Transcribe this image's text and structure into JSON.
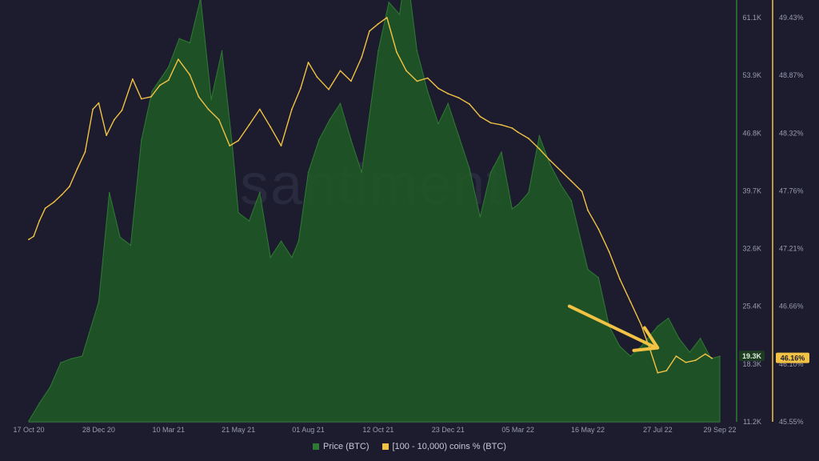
{
  "watermark": "santiment",
  "colors": {
    "background": "#1c1c2e",
    "price": "#1f5c24",
    "price_line": "#2f7a33",
    "holders": "#f2c244",
    "axis_text": "#9a9aae"
  },
  "legend": {
    "price_label": "Price (BTC)",
    "holders_label": "[100 - 10,000) coins % (BTC)"
  },
  "current_values": {
    "price": "19.3K",
    "holders": "46.16%"
  },
  "chart_data": {
    "type": "area",
    "x_tick_labels": [
      "17 Oct 20",
      "28 Dec 20",
      "10 Mar 21",
      "21 May 21",
      "01 Aug 21",
      "12 Oct 21",
      "23 Dec 21",
      "05 Mar 22",
      "16 May 22",
      "27 Jul 22",
      "29 Sep 22"
    ],
    "y_left_ticks": [
      "61.1K",
      "53.9K",
      "46.8K",
      "39.7K",
      "32.6K",
      "25.4K",
      "18.3K",
      "11.2K"
    ],
    "y_left_range": [
      11200,
      61100
    ],
    "y_right_ticks": [
      "49.43%",
      "48.87%",
      "48.32%",
      "47.76%",
      "47.21%",
      "46.66%",
      "46.10%",
      "45.55%"
    ],
    "y_right_range": [
      45.55,
      49.43
    ],
    "series": [
      {
        "name": "Price (BTC)",
        "axis": "left",
        "style": "area",
        "x": [
          "17 Oct 20",
          "28 Oct 20",
          "08 Nov 20",
          "19 Nov 20",
          "30 Nov 20",
          "11 Dec 20",
          "28 Dec 20",
          "08 Jan 21",
          "19 Jan 21",
          "30 Jan 21",
          "10 Feb 21",
          "21 Feb 21",
          "10 Mar 21",
          "21 Mar 21",
          "01 Apr 21",
          "12 Apr 21",
          "23 Apr 21",
          "04 May 21",
          "15 May 21",
          "21 May 21",
          "01 Jun 21",
          "12 Jun 21",
          "23 Jun 21",
          "04 Jul 21",
          "15 Jul 21",
          "22 Jul 21",
          "01 Aug 21",
          "12 Aug 21",
          "23 Aug 21",
          "03 Sep 21",
          "14 Sep 21",
          "25 Sep 21",
          "12 Oct 21",
          "23 Oct 21",
          "03 Nov 21",
          "10 Nov 21",
          "21 Nov 21",
          "02 Dec 21",
          "13 Dec 21",
          "23 Dec 21",
          "03 Jan 22",
          "14 Jan 22",
          "25 Jan 22",
          "05 Feb 22",
          "16 Feb 22",
          "27 Feb 22",
          "05 Mar 22",
          "16 Mar 22",
          "27 Mar 22",
          "07 Apr 22",
          "18 Apr 22",
          "29 Apr 22",
          "16 May 22",
          "27 May 22",
          "07 Jun 22",
          "18 Jun 22",
          "29 Jun 22",
          "10 Jul 22",
          "27 Jul 22",
          "07 Aug 22",
          "18 Aug 22",
          "29 Aug 22",
          "09 Sep 22",
          "20 Sep 22",
          "29 Sep 22"
        ],
        "values": [
          11300,
          13500,
          15500,
          18500,
          19000,
          19300,
          26000,
          39500,
          34000,
          33000,
          46000,
          52000,
          55000,
          58500,
          58000,
          63500,
          51000,
          57000,
          45000,
          37000,
          36000,
          39500,
          31500,
          33500,
          31500,
          33500,
          42000,
          46000,
          48500,
          50500,
          46000,
          42000,
          57000,
          63000,
          61500,
          67500,
          57000,
          52000,
          48000,
          50500,
          46500,
          42500,
          36500,
          42000,
          44500,
          37500,
          38000,
          39500,
          46500,
          43000,
          40500,
          38500,
          30000,
          29000,
          23000,
          20500,
          19300,
          20500,
          23000,
          24000,
          21500,
          19800,
          21500,
          19000,
          19300
        ]
      },
      {
        "name": "[100 - 10,000) coins % (BTC)",
        "axis": "right",
        "style": "line",
        "x": [
          "17 Oct 20",
          "22 Oct 20",
          "28 Oct 20",
          "03 Nov 20",
          "12 Nov 20",
          "20 Nov 20",
          "28 Nov 20",
          "06 Dec 20",
          "14 Dec 20",
          "22 Dec 20",
          "28 Dec 20",
          "05 Jan 21",
          "13 Jan 21",
          "21 Jan 21",
          "01 Feb 21",
          "10 Feb 21",
          "20 Feb 21",
          "01 Mar 21",
          "10 Mar 21",
          "20 Mar 21",
          "01 Apr 21",
          "10 Apr 21",
          "20 Apr 21",
          "01 May 21",
          "12 May 21",
          "21 May 21",
          "01 Jun 21",
          "12 Jun 21",
          "23 Jun 21",
          "04 Jul 21",
          "15 Jul 21",
          "24 Jul 21",
          "01 Aug 21",
          "10 Aug 21",
          "22 Aug 21",
          "03 Sep 21",
          "14 Sep 21",
          "25 Sep 21",
          "03 Oct 21",
          "12 Oct 21",
          "21 Oct 21",
          "31 Oct 21",
          "10 Nov 21",
          "21 Nov 21",
          "02 Dec 21",
          "13 Dec 21",
          "23 Dec 21",
          "03 Jan 22",
          "14 Jan 22",
          "25 Jan 22",
          "05 Feb 22",
          "16 Feb 22",
          "27 Feb 22",
          "05 Mar 22",
          "16 Mar 22",
          "27 Mar 22",
          "07 Apr 22",
          "18 Apr 22",
          "29 Apr 22",
          "10 May 22",
          "16 May 22",
          "27 May 22",
          "07 Jun 22",
          "18 Jun 22",
          "29 Jun 22",
          "10 Jul 22",
          "20 Jul 22",
          "27 Jul 22",
          "05 Aug 22",
          "15 Aug 22",
          "25 Aug 22",
          "04 Sep 22",
          "14 Sep 22",
          "21 Sep 22"
        ],
        "values": [
          47.3,
          47.33,
          47.48,
          47.6,
          47.66,
          47.73,
          47.81,
          47.98,
          48.14,
          48.55,
          48.61,
          48.3,
          48.45,
          48.54,
          48.84,
          48.65,
          48.67,
          48.78,
          48.83,
          49.03,
          48.88,
          48.67,
          48.55,
          48.45,
          48.2,
          48.25,
          48.4,
          48.55,
          48.38,
          48.2,
          48.55,
          48.75,
          49.0,
          48.86,
          48.74,
          48.92,
          48.82,
          49.05,
          49.3,
          49.37,
          49.43,
          49.1,
          48.92,
          48.82,
          48.85,
          48.75,
          48.7,
          48.66,
          48.6,
          48.48,
          48.42,
          48.4,
          48.37,
          48.33,
          48.27,
          48.17,
          48.06,
          47.96,
          47.86,
          47.76,
          47.58,
          47.4,
          47.18,
          46.92,
          46.7,
          46.48,
          46.22,
          46.02,
          46.04,
          46.18,
          46.12,
          46.14,
          46.2,
          46.16
        ]
      }
    ],
    "annotations": [
      {
        "type": "arrow",
        "from": {
          "x": "27 Apr 22",
          "y_right": 46.66
        },
        "to": {
          "x": "27 Jul 22",
          "y_right": 46.26
        }
      }
    ]
  }
}
